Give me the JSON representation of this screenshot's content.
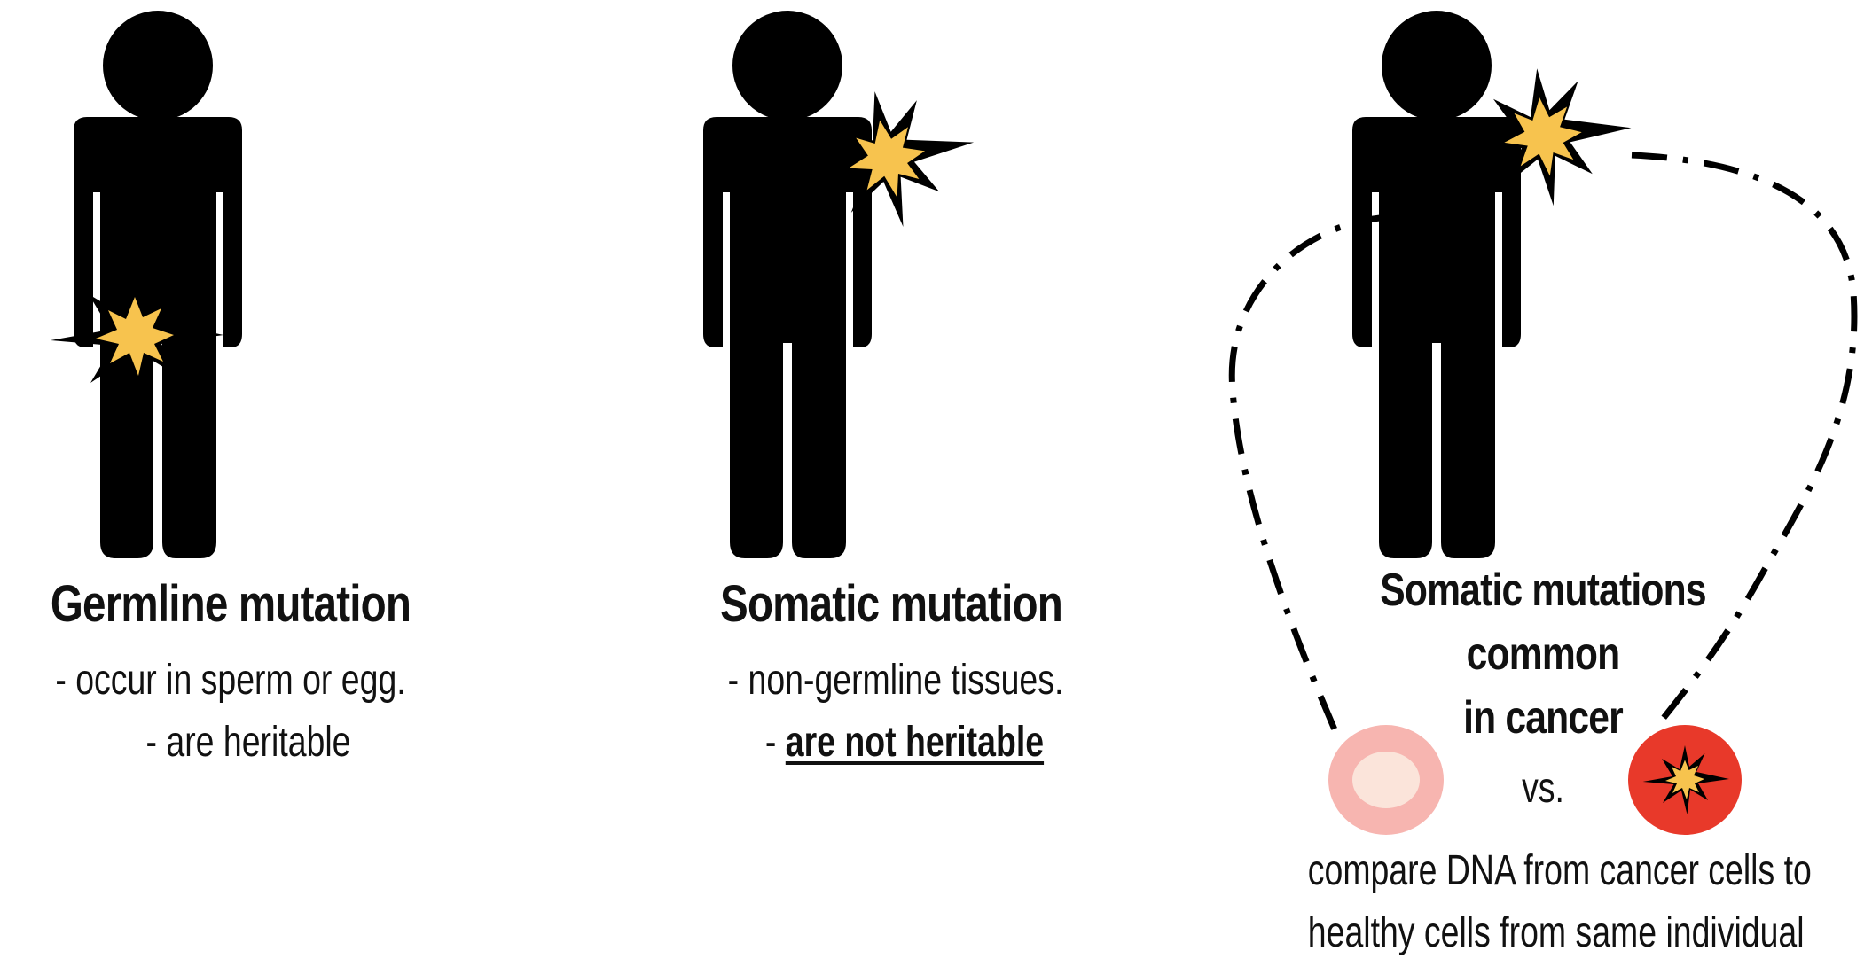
{
  "panels": [
    {
      "title": "Germline mutation",
      "lines": [
        "- occur in sperm or egg.",
        "- are heritable"
      ]
    },
    {
      "title": "Somatic mutation",
      "lines": [
        "- non-germline tissues.",
        "- ",
        "are not heritable"
      ]
    },
    {
      "title_lines": [
        "Somatic mutations",
        "common",
        "in cancer"
      ],
      "vs": "vs.",
      "caption": [
        "compare DNA from cancer cells to",
        "healthy cells from same individual"
      ]
    }
  ],
  "colors": {
    "figure": "#000000",
    "burst": "#f7c34e",
    "healthy_cell_outer": "#f7b5b0",
    "healthy_cell_inner": "#fbe4da",
    "cancer_cell": "#e8392a"
  },
  "icons": [
    "person-icon",
    "mutation-burst-icon",
    "healthy-cell-icon",
    "cancer-cell-icon"
  ]
}
